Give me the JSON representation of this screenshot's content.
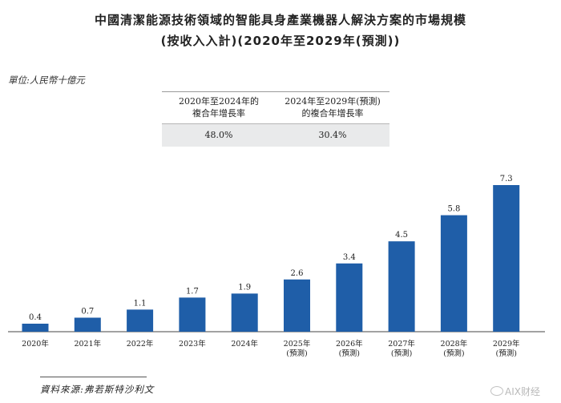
{
  "title": "中國清潔能源技術領域的智能具身產業機器人解決方案的市場規模",
  "subtitle": "(按收入入計)(2020年至2029年(預測))",
  "unit_label": "單位:人民幣十億元",
  "cagr_table": {
    "headers": [
      [
        "2020年至2024年的",
        "複合年增長率"
      ],
      [
        "2024年至2029年(預測)",
        "的複合年增長率"
      ]
    ],
    "values": [
      "48.0%",
      "30.4%"
    ]
  },
  "source": "資料來源:弗若斯特沙利文",
  "watermark": "AIX财经",
  "chart_data": {
    "type": "bar",
    "title": "中國清潔能源技術領域的智能具身產業機器人解決方案的市場規模",
    "categories": [
      [
        "2020年"
      ],
      [
        "2021年"
      ],
      [
        "2022年"
      ],
      [
        "2023年"
      ],
      [
        "2024年"
      ],
      [
        "2025年",
        "(預測)"
      ],
      [
        "2026年",
        "(預測)"
      ],
      [
        "2027年",
        "(預測)"
      ],
      [
        "2028年",
        "(預測)"
      ],
      [
        "2029年",
        "(預測)"
      ]
    ],
    "values": [
      0.4,
      0.7,
      1.1,
      1.7,
      1.9,
      2.6,
      3.4,
      4.5,
      5.8,
      7.3
    ],
    "value_labels": [
      "0.4",
      "0.7",
      "1.1",
      "1.7",
      "1.9",
      "2.6",
      "3.4",
      "4.5",
      "5.8",
      "7.3"
    ],
    "ylim": [
      0,
      7.3
    ],
    "color": "#1f5ea8",
    "grid": false
  }
}
